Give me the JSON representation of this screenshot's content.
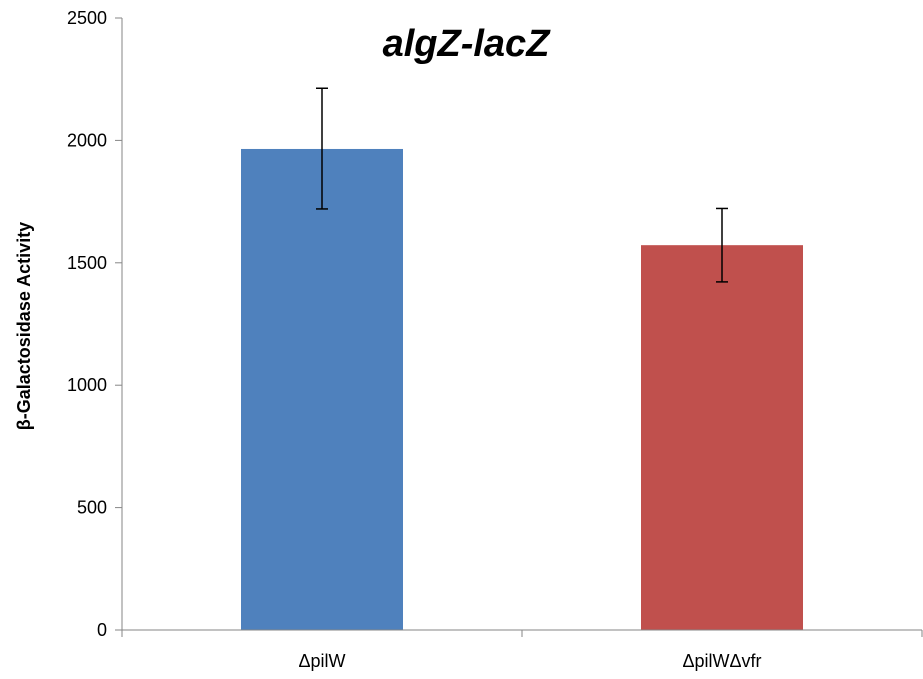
{
  "chart_data": {
    "type": "bar",
    "title": "algZ-lacZ",
    "xlabel": "",
    "ylabel": "β-Galactosidase Activity",
    "ylim": [
      0,
      2500
    ],
    "yticks": [
      0,
      500,
      1000,
      1500,
      2000,
      2500
    ],
    "ytick_labels": [
      "0",
      "500",
      "1000",
      "1500",
      "2000",
      "2500"
    ],
    "categories": [
      "ΔpilW",
      "ΔpilWΔvfr"
    ],
    "values": [
      1965,
      1572
    ],
    "error_low": [
      1720,
      1422
    ],
    "error_high": [
      2213,
      1722
    ],
    "bar_colors": [
      "#4F81BD",
      "#C0504D"
    ],
    "grid": false,
    "legend": "none"
  }
}
